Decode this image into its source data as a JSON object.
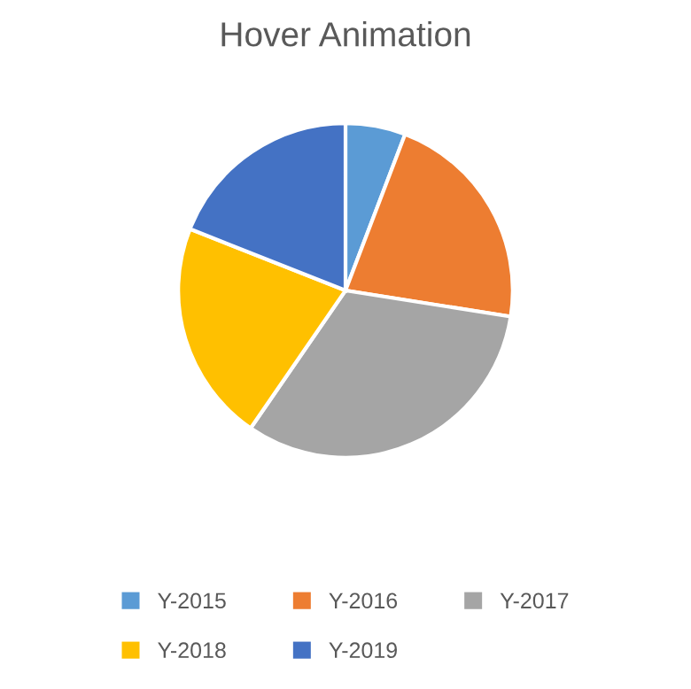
{
  "chart_data": {
    "type": "pie",
    "title": "Hover Animation",
    "categories": [
      "Y-2015",
      "Y-2016",
      "Y-2017",
      "Y-2018",
      "Y-2019"
    ],
    "values": [
      5.8,
      21.7,
      32.1,
      21.4,
      19.0
    ],
    "colors": [
      "#5b9bd5",
      "#ed7d31",
      "#a5a5a5",
      "#ffc000",
      "#4472c4"
    ],
    "legend": "bottom"
  }
}
